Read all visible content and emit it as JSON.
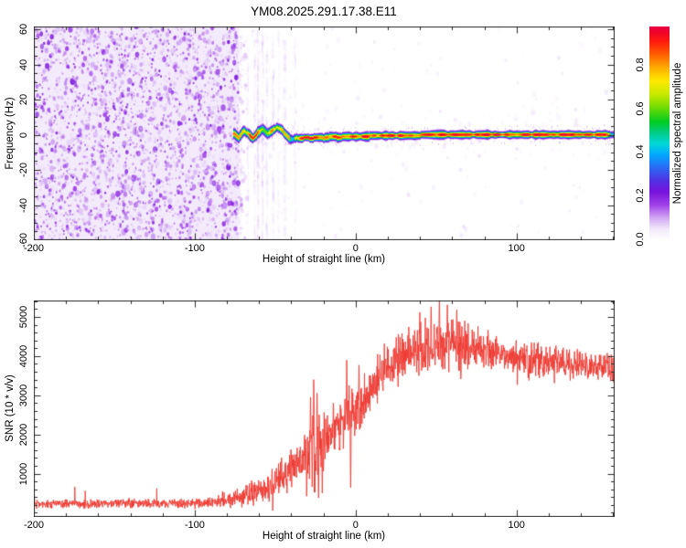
{
  "title": "YM08.2025.291.17.38.E11",
  "chart_data": [
    {
      "type": "heatmap",
      "title": "YM08.2025.291.17.38.E11",
      "xlabel": "Height of straight line (km)",
      "ylabel": "Frequency (Hz)",
      "xlim": [
        -200,
        161
      ],
      "ylim": [
        -60,
        60
      ],
      "x_major_ticks": [
        -200,
        -100,
        0,
        100
      ],
      "x_minor_step": 20,
      "y_major_ticks": [
        60,
        40,
        20,
        0,
        -20,
        -40,
        -60
      ],
      "y_minor_step": 5,
      "grid": false,
      "colorbar": {
        "label": "Normalized spectral amplitude",
        "ticks": [
          0.0,
          0.2,
          0.4,
          0.6,
          0.8
        ],
        "range": [
          0.0,
          0.975
        ],
        "colormap_stops": [
          [
            0.0,
            "#ffffff"
          ],
          [
            0.05,
            "#f2e8fb"
          ],
          [
            0.1,
            "#d2a8f2"
          ],
          [
            0.16,
            "#a040ea"
          ],
          [
            0.22,
            "#7714dd"
          ],
          [
            0.27,
            "#5030e2"
          ],
          [
            0.33,
            "#2b6af5"
          ],
          [
            0.39,
            "#00a8ff"
          ],
          [
            0.44,
            "#00d8d8"
          ],
          [
            0.49,
            "#00cc88"
          ],
          [
            0.54,
            "#00cc22"
          ],
          [
            0.61,
            "#77dd00"
          ],
          [
            0.67,
            "#ccea00"
          ],
          [
            0.73,
            "#ffe800"
          ],
          [
            0.79,
            "#ffaa00"
          ],
          [
            0.85,
            "#ff5e00"
          ],
          [
            0.91,
            "#ff1a0d"
          ],
          [
            0.96,
            "#ee0033"
          ],
          [
            1.0,
            "#dd0066"
          ]
        ]
      },
      "noise_region": {
        "x_range": [
          -200,
          -74
        ],
        "amplitude_range": [
          0.05,
          0.22
        ],
        "description": "dense violet speckle noise covering all frequencies before signal acquisition"
      },
      "sparse_region": {
        "x_range": [
          -74,
          161
        ],
        "amplitude_range": [
          0.0,
          0.15
        ],
        "description": "near-white background with faint violet vertical streaks and sparse speckle"
      },
      "signal_trace": {
        "x_start": -76,
        "halfwidth_hz": 2.5,
        "peak_amplitude": 1.0,
        "center_freq_hz": [
          [
            -76,
            1
          ],
          [
            -73,
            -1.5
          ],
          [
            -70,
            2.5
          ],
          [
            -67,
            1
          ],
          [
            -64,
            -2
          ],
          [
            -61,
            1.5
          ],
          [
            -58,
            3.5
          ],
          [
            -55,
            1
          ],
          [
            -52,
            2.5
          ],
          [
            -49,
            4.5
          ],
          [
            -46,
            3
          ],
          [
            -44,
            0.5
          ],
          [
            -42,
            -1.5
          ],
          [
            -40,
            -2.5
          ],
          [
            -37,
            -1.5
          ],
          [
            -34,
            -2
          ],
          [
            -31,
            -1
          ],
          [
            -28,
            -2
          ],
          [
            -25,
            -1.2
          ],
          [
            -20,
            -1.6
          ],
          [
            -15,
            -0.8
          ],
          [
            -10,
            -1.2
          ],
          [
            -5,
            -0.6
          ],
          [
            0,
            -1
          ],
          [
            5,
            -0.8
          ],
          [
            10,
            -0.4
          ],
          [
            20,
            -0.2
          ],
          [
            30,
            -0.4
          ],
          [
            40,
            0
          ],
          [
            60,
            0.3
          ],
          [
            80,
            0.4
          ],
          [
            100,
            0.5
          ],
          [
            120,
            0.5
          ],
          [
            140,
            0.5
          ],
          [
            161,
            0.5
          ]
        ],
        "description": "narrow high-amplitude echo near 0 Hz, wavy between -76 and -40 km, flat afterwards"
      }
    },
    {
      "type": "line",
      "xlabel": "Height of straight line (km)",
      "ylabel": "SNR (10 * v/v)",
      "xlim": [
        -200,
        161
      ],
      "ylim": [
        -107,
        5420
      ],
      "x_major_ticks": [
        -200,
        -100,
        0,
        100
      ],
      "x_minor_step": 20,
      "y_major_ticks": [
        1000,
        2000,
        3000,
        4000,
        5000
      ],
      "y_minor_step": 200,
      "line_color": "#ee3b33",
      "envelope_points_km_mean_spread": [
        [
          -200,
          230,
          150
        ],
        [
          -160,
          230,
          150
        ],
        [
          -130,
          235,
          150
        ],
        [
          -110,
          240,
          160
        ],
        [
          -95,
          255,
          170
        ],
        [
          -85,
          290,
          220
        ],
        [
          -78,
          340,
          280
        ],
        [
          -72,
          400,
          330
        ],
        [
          -66,
          480,
          400
        ],
        [
          -60,
          560,
          450
        ],
        [
          -55,
          640,
          500
        ],
        [
          -50,
          760,
          600
        ],
        [
          -46,
          900,
          650
        ],
        [
          -42,
          1050,
          650
        ],
        [
          -38,
          1250,
          650
        ],
        [
          -34,
          1400,
          700
        ],
        [
          -30,
          1500,
          1100
        ],
        [
          -26,
          1600,
          1400
        ],
        [
          -22,
          1700,
          1200
        ],
        [
          -18,
          1950,
          900
        ],
        [
          -14,
          2150,
          850
        ],
        [
          -10,
          2250,
          900
        ],
        [
          -6,
          2400,
          950
        ],
        [
          -2,
          2550,
          950
        ],
        [
          2,
          2700,
          900
        ],
        [
          6,
          2950,
          850
        ],
        [
          10,
          3200,
          800
        ],
        [
          14,
          3450,
          800
        ],
        [
          18,
          3650,
          800
        ],
        [
          22,
          3850,
          780
        ],
        [
          26,
          3950,
          780
        ],
        [
          32,
          4050,
          780
        ],
        [
          38,
          4100,
          800
        ],
        [
          44,
          4150,
          820
        ],
        [
          50,
          4250,
          850
        ],
        [
          56,
          4300,
          850
        ],
        [
          62,
          4300,
          820
        ],
        [
          68,
          4250,
          780
        ],
        [
          74,
          4200,
          720
        ],
        [
          80,
          4150,
          680
        ],
        [
          88,
          4050,
          620
        ],
        [
          96,
          4000,
          580
        ],
        [
          104,
          3950,
          560
        ],
        [
          112,
          3900,
          550
        ],
        [
          120,
          3870,
          530
        ],
        [
          130,
          3820,
          520
        ],
        [
          140,
          3780,
          500
        ],
        [
          150,
          3730,
          480
        ],
        [
          161,
          3680,
          470
        ]
      ],
      "spikes_km_value": [
        [
          -28,
          2950
        ],
        [
          -26,
          3400
        ],
        [
          -24,
          3050
        ],
        [
          -5.5,
          3900
        ],
        [
          -4,
          3250
        ],
        [
          2,
          3770
        ],
        [
          40,
          5120
        ],
        [
          47,
          5260
        ],
        [
          52,
          5420
        ],
        [
          57,
          5310
        ],
        [
          63,
          5180
        ]
      ],
      "dips_km_value": [
        [
          -30.5,
          420
        ],
        [
          -23,
          380
        ],
        [
          -20.8,
          500
        ],
        [
          -3,
          640
        ]
      ]
    }
  ]
}
